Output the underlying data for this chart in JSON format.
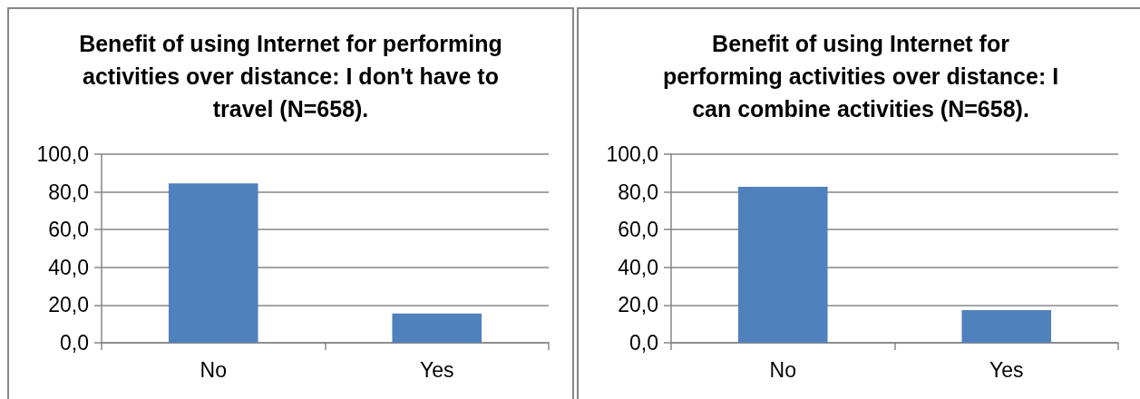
{
  "chart_data": [
    {
      "type": "bar",
      "title": "Benefit of using Internet for performing activities over distance: I don't have to travel (N=658).",
      "categories": [
        "No",
        "Yes"
      ],
      "values": [
        84.5,
        15.5
      ],
      "color": "#4f81bd",
      "ylim": [
        0,
        100
      ],
      "yticks": [
        {
          "value": 0,
          "label": "0,0"
        },
        {
          "value": 20,
          "label": "20,0"
        },
        {
          "value": 40,
          "label": "40,0"
        },
        {
          "value": 60,
          "label": "60,0"
        },
        {
          "value": 80,
          "label": "80,0"
        },
        {
          "value": 100,
          "label": "100,0"
        }
      ],
      "grid": "y"
    },
    {
      "type": "bar",
      "title": "Benefit of using Internet for performing activities over distance: I can combine activities (N=658).",
      "categories": [
        "No",
        "Yes"
      ],
      "values": [
        82.7,
        17.3
      ],
      "color": "#4f81bd",
      "ylim": [
        0,
        100
      ],
      "yticks": [
        {
          "value": 0,
          "label": "0,0"
        },
        {
          "value": 20,
          "label": "20,0"
        },
        {
          "value": 40,
          "label": "40,0"
        },
        {
          "value": 60,
          "label": "60,0"
        },
        {
          "value": 80,
          "label": "80,0"
        },
        {
          "value": 100,
          "label": "100,0"
        }
      ],
      "grid": "y"
    }
  ]
}
